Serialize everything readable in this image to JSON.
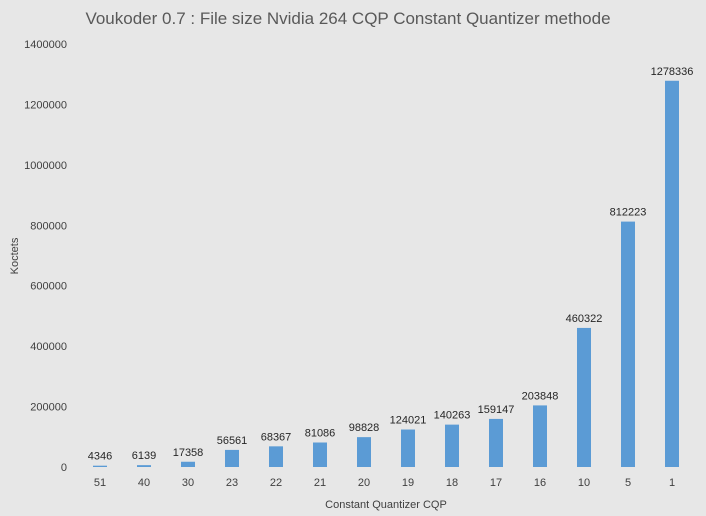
{
  "chart_data": {
    "type": "bar",
    "title": "Voukoder 0.7 : File size Nvidia 264 CQP Constant Quantizer methode",
    "xlabel": "Constant Quantizer CQP",
    "ylabel": "Koctets",
    "categories": [
      "51",
      "40",
      "30",
      "23",
      "22",
      "21",
      "20",
      "19",
      "18",
      "17",
      "16",
      "10",
      "5",
      "1"
    ],
    "values": [
      4346,
      6139,
      17358,
      56561,
      68367,
      81086,
      98828,
      124021,
      140263,
      159147,
      203848,
      460322,
      812223,
      1278336
    ],
    "ylim": [
      0,
      1400000
    ],
    "yticks": [
      0,
      200000,
      400000,
      600000,
      800000,
      1000000,
      1200000,
      1400000
    ],
    "grid": false,
    "data_labels": true,
    "bar_color": "#5b9bd5",
    "background_color": "#e7e7e7"
  }
}
